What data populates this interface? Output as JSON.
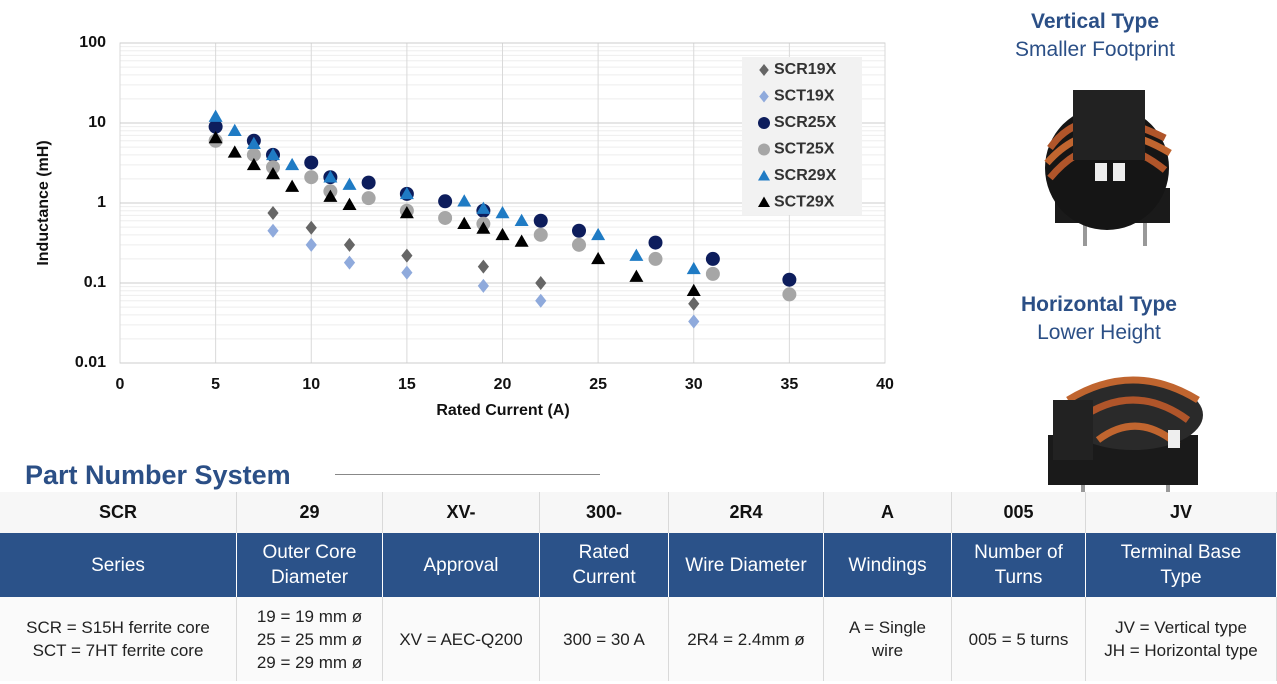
{
  "chart_data": {
    "type": "scatter",
    "x_label": "Rated Current (A)",
    "y_label": "Inductance (mH)",
    "xlim": [
      0,
      40
    ],
    "xticks": [
      0,
      5,
      10,
      15,
      20,
      25,
      30,
      35,
      40
    ],
    "ylim": [
      0.01,
      100
    ],
    "yticks": [
      100,
      10,
      1,
      0.1,
      0.01
    ],
    "y_scale": "log",
    "grid": true,
    "legend": "upper right",
    "series": [
      {
        "name": "SCR19X",
        "color": "#666666",
        "marker": "diamond",
        "x": [
          5,
          8,
          10,
          12,
          15,
          19,
          22,
          30
        ],
        "values": [
          6,
          0.75,
          0.49,
          0.3,
          0.22,
          0.16,
          0.1,
          0.055
        ]
      },
      {
        "name": "SCT19X",
        "color": "#8faadc",
        "marker": "diamond",
        "x": [
          5,
          8,
          10,
          12,
          15,
          19,
          22,
          30
        ],
        "values": [
          6.5,
          0.45,
          0.3,
          0.18,
          0.135,
          0.092,
          0.06,
          0.033
        ]
      },
      {
        "name": "SCR25X",
        "color": "#0d1d5c",
        "marker": "circle",
        "x": [
          5,
          7,
          8,
          10,
          11,
          13,
          15,
          17,
          19,
          22,
          24,
          28,
          31,
          35
        ],
        "values": [
          9,
          6,
          4,
          3.2,
          2.1,
          1.8,
          1.3,
          1.05,
          0.8,
          0.6,
          0.45,
          0.32,
          0.2,
          0.11
        ]
      },
      {
        "name": "SCT25X",
        "color": "#a6a6a6",
        "marker": "circle",
        "x": [
          5,
          7,
          8,
          10,
          11,
          13,
          15,
          17,
          19,
          22,
          24,
          28,
          31,
          35
        ],
        "values": [
          6,
          4,
          2.8,
          2.1,
          1.4,
          1.15,
          0.8,
          0.65,
          0.55,
          0.4,
          0.3,
          0.2,
          0.13,
          0.072
        ]
      },
      {
        "name": "SCR29X",
        "color": "#1f7bc4",
        "marker": "triangle",
        "x": [
          5,
          6,
          7,
          8,
          9,
          11,
          12,
          15,
          18,
          19,
          20,
          21,
          25,
          27,
          30
        ],
        "values": [
          12,
          8,
          5.5,
          4,
          3,
          2.1,
          1.7,
          1.3,
          1.05,
          0.85,
          0.75,
          0.6,
          0.4,
          0.22,
          0.15
        ]
      },
      {
        "name": "SCT29X",
        "color": "#000000",
        "marker": "triangle",
        "x": [
          5,
          6,
          7,
          8,
          9,
          11,
          12,
          15,
          18,
          19,
          20,
          21,
          25,
          27,
          30
        ],
        "values": [
          6.5,
          4.3,
          3,
          2.3,
          1.6,
          1.2,
          0.95,
          0.75,
          0.55,
          0.48,
          0.4,
          0.33,
          0.2,
          0.12,
          0.08
        ]
      }
    ]
  },
  "side": {
    "vertical_title": "Vertical Type",
    "vertical_sub": "Smaller Footprint",
    "horizontal_title": "Horizontal Type",
    "horizontal_sub": "Lower Height"
  },
  "table": {
    "title": "Part Number System",
    "codes": [
      "SCR",
      "29",
      "XV-",
      "300-",
      "2R4",
      "A",
      "005",
      "JV"
    ],
    "headers": [
      [
        "Series"
      ],
      [
        "Outer Core",
        "Diameter"
      ],
      [
        "Approval"
      ],
      [
        "Rated",
        "Current"
      ],
      [
        "Wire Diameter"
      ],
      [
        "Windings"
      ],
      [
        "Number of",
        "Turns"
      ],
      [
        "Terminal Base",
        "Type"
      ]
    ],
    "descriptions": [
      [
        "SCR = S15H ferrite core",
        "SCT = 7HT ferrite core"
      ],
      [
        "19 = 19 mm ø",
        "25 = 25 mm ø",
        "29 = 29 mm ø"
      ],
      [
        "XV = AEC-Q200"
      ],
      [
        "300 = 30 A"
      ],
      [
        "2R4 = 2.4mm ø"
      ],
      [
        "A = Single",
        "wire"
      ],
      [
        "005 = 5 turns"
      ],
      [
        "JV = Vertical type",
        "JH = Horizontal type"
      ]
    ]
  }
}
